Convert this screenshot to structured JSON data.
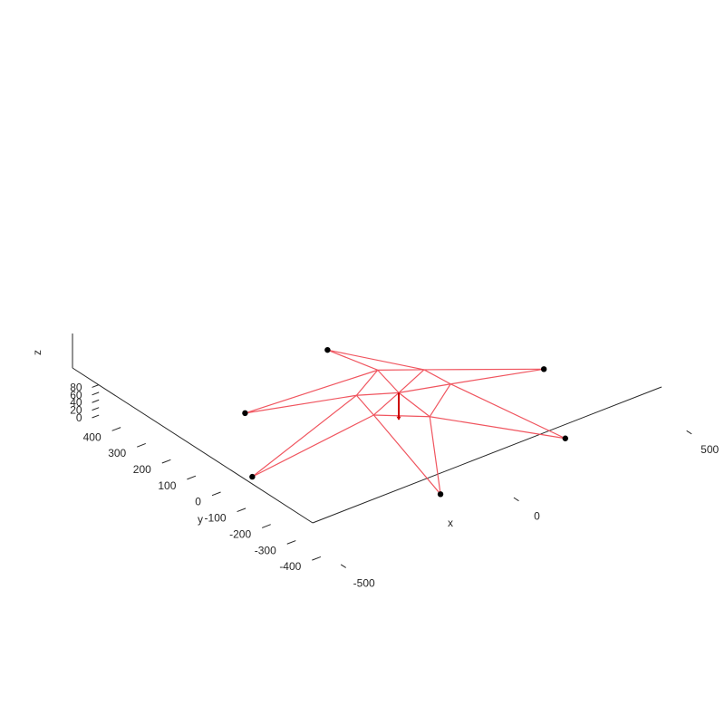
{
  "chart_data": {
    "type": "line",
    "subtype": "3d-truss-wireframe",
    "title": "",
    "xlabel": "x",
    "ylabel": "y",
    "zlabel": "z",
    "x_ticks": [
      -500,
      0,
      500
    ],
    "y_ticks": [
      -400,
      -300,
      -200,
      -100,
      0,
      100,
      200,
      300,
      400
    ],
    "z_ticks": [
      0,
      20,
      40,
      60,
      80
    ],
    "xlim": [
      -540,
      540
    ],
    "ylim": [
      -480,
      480
    ],
    "zlim": [
      0,
      80
    ],
    "grid": false,
    "colors": {
      "member": "#f0555f",
      "support": "#000000",
      "load": "#cc0000",
      "axis": "#262626"
    },
    "nodes": [
      {
        "id": 0,
        "x": 0,
        "y": 0,
        "z": 80
      },
      {
        "id": 1,
        "x": 121,
        "y": 66,
        "z": 70
      },
      {
        "id": 2,
        "x": 36,
        "y": 134,
        "z": 70
      },
      {
        "id": 3,
        "x": -73,
        "y": 68,
        "z": 70
      },
      {
        "id": 4,
        "x": -97,
        "y": -34,
        "z": 70
      },
      {
        "id": 5,
        "x": 0,
        "y": -124,
        "z": 70
      },
      {
        "id": 6,
        "x": 129,
        "y": -29,
        "z": 70
      },
      {
        "id": 7,
        "x": 414,
        "y": -8,
        "z": 0
      },
      {
        "id": 8,
        "x": 76,
        "y": 390,
        "z": 0
      },
      {
        "id": 9,
        "x": -250,
        "y": 269,
        "z": 0
      },
      {
        "id": 10,
        "x": -415,
        "y": 12,
        "z": 0
      },
      {
        "id": 11,
        "x": -123,
        "y": -337,
        "z": 0
      },
      {
        "id": 12,
        "x": 259,
        "y": -308,
        "z": 0
      }
    ],
    "members": [
      [
        0,
        1
      ],
      [
        0,
        2
      ],
      [
        0,
        3
      ],
      [
        0,
        4
      ],
      [
        0,
        5
      ],
      [
        0,
        6
      ],
      [
        1,
        2
      ],
      [
        2,
        3
      ],
      [
        3,
        4
      ],
      [
        4,
        5
      ],
      [
        5,
        6
      ],
      [
        6,
        1
      ],
      [
        1,
        7
      ],
      [
        1,
        8
      ],
      [
        2,
        8
      ],
      [
        2,
        9
      ],
      [
        3,
        9
      ],
      [
        3,
        10
      ],
      [
        4,
        10
      ],
      [
        4,
        11
      ],
      [
        5,
        11
      ],
      [
        5,
        12
      ],
      [
        6,
        12
      ],
      [
        6,
        7
      ]
    ],
    "supports": [
      7,
      8,
      9,
      10,
      11,
      12
    ],
    "loads": [
      {
        "node": 0,
        "fx": 0,
        "fy": 0,
        "fz": -1
      }
    ]
  }
}
